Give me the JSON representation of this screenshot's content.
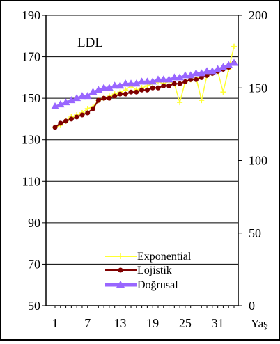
{
  "chart_data": {
    "type": "line",
    "title": "LDL",
    "xlabel": "Yaş",
    "ylabel": "",
    "x": [
      1,
      2,
      3,
      4,
      5,
      6,
      7,
      8,
      9,
      10,
      11,
      12,
      13,
      14,
      15,
      16,
      17,
      18,
      19,
      20,
      21,
      22,
      23,
      24,
      25,
      26,
      27,
      28,
      29,
      30,
      31,
      32,
      33,
      34
    ],
    "x_ticks": [
      1,
      7,
      13,
      19,
      25,
      31
    ],
    "ylim": [
      50,
      190
    ],
    "y_ticks": [
      50,
      70,
      90,
      110,
      130,
      150,
      170,
      190
    ],
    "y2lim": [
      0,
      200
    ],
    "y2_ticks": [
      0,
      50,
      100,
      150,
      200
    ],
    "grid": "horizontal",
    "legend_position": "bottom-right",
    "series": [
      {
        "name": "Exponential",
        "color": "#ffff33",
        "marker": "cross",
        "values": [
          136,
          137,
          139,
          141,
          142,
          143,
          145,
          146,
          149,
          150,
          151,
          152,
          153,
          154,
          156,
          154,
          155,
          156,
          157,
          158,
          157,
          158,
          157,
          148,
          158,
          159,
          160,
          149,
          161,
          162,
          163,
          153,
          164,
          175
        ]
      },
      {
        "name": "Lojistik",
        "color": "#7f0000",
        "marker": "circle",
        "values": [
          136,
          138,
          139,
          140,
          141,
          142,
          143,
          145,
          149,
          150,
          150,
          151,
          152,
          152,
          153,
          153,
          154,
          154,
          155,
          155,
          156,
          156,
          157,
          157,
          158,
          159,
          159,
          160,
          161,
          162,
          163,
          164,
          165,
          167
        ]
      },
      {
        "name": "Doğrusal",
        "color": "#9966ff",
        "marker": "triangle",
        "values": [
          146,
          147,
          148,
          149,
          150,
          151,
          151,
          153,
          154,
          155,
          155,
          156,
          156,
          157,
          157,
          157,
          158,
          158,
          158,
          159,
          159,
          159,
          160,
          160,
          161,
          161,
          162,
          162,
          163,
          163,
          164,
          165,
          166,
          167
        ]
      }
    ]
  }
}
